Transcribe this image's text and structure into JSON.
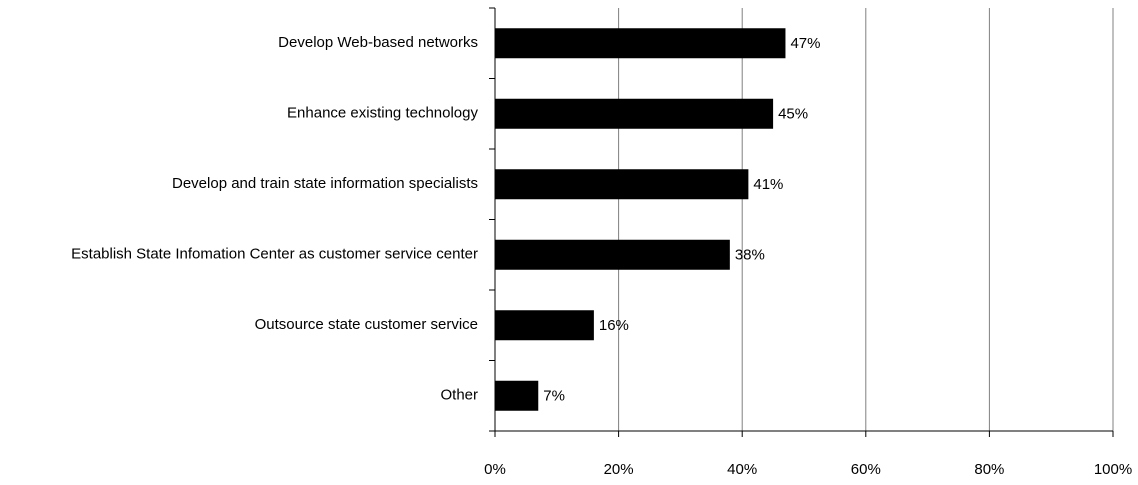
{
  "chart_data": {
    "type": "barh",
    "categories": [
      "Develop Web-based networks",
      "Enhance existing technology",
      "Develop and train state information specialists",
      "Establish State Infomation Center as customer service center",
      "Outsource state customer service",
      "Other"
    ],
    "values": [
      47,
      45,
      41,
      38,
      16,
      7
    ],
    "value_labels": [
      "47%",
      "45%",
      "41%",
      "38%",
      "16%",
      "7%"
    ],
    "color": "#000000",
    "xlim": [
      0,
      100
    ],
    "xticks": [
      {
        "value": 0,
        "label": "0%"
      },
      {
        "value": 20,
        "label": "20%"
      },
      {
        "value": 40,
        "label": "40%"
      },
      {
        "value": 60,
        "label": "60%"
      },
      {
        "value": 80,
        "label": "80%"
      },
      {
        "value": 100,
        "label": "100%"
      }
    ],
    "grid": true
  }
}
